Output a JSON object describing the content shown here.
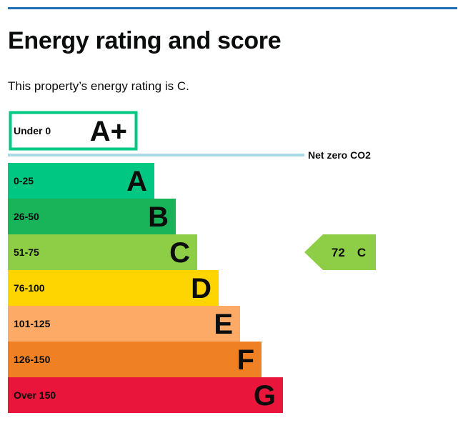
{
  "page": {
    "title": "Energy rating and score",
    "intro": "This property’s energy rating is C."
  },
  "chart_data": {
    "type": "bar",
    "bands": [
      {
        "range": "Under 0",
        "letter": "A+",
        "color": "#00c781",
        "outlined": true
      },
      {
        "range": "0-25",
        "letter": "A",
        "color": "#00c781"
      },
      {
        "range": "26-50",
        "letter": "B",
        "color": "#19b459"
      },
      {
        "range": "51-75",
        "letter": "C",
        "color": "#8dce46"
      },
      {
        "range": "76-100",
        "letter": "D",
        "color": "#ffd500"
      },
      {
        "range": "101-125",
        "letter": "E",
        "color": "#fcaa65"
      },
      {
        "range": "126-150",
        "letter": "F",
        "color": "#ef8023"
      },
      {
        "range": "Over 150",
        "letter": "G",
        "color": "#e9153b"
      }
    ],
    "net_zero": {
      "label": "Net zero CO2",
      "color": "#a8dbe6"
    },
    "current": {
      "score": "72",
      "letter": "C",
      "band": "C",
      "color": "#8dce46"
    }
  }
}
